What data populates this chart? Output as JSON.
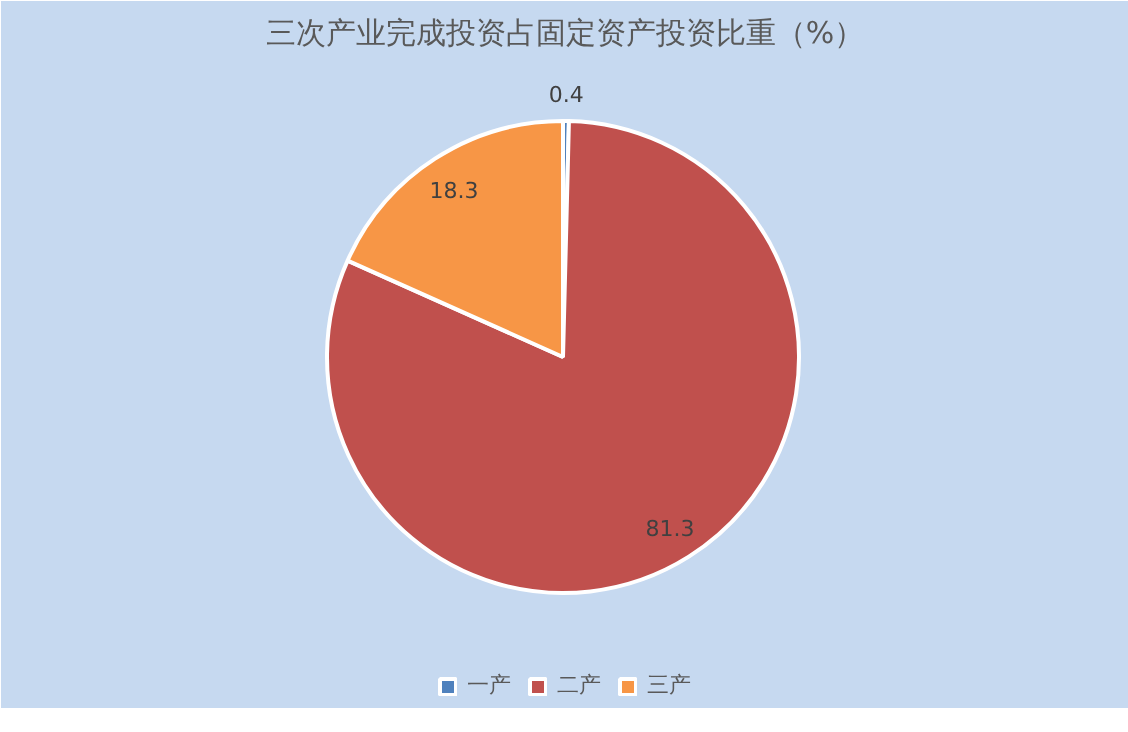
{
  "chart_data": {
    "type": "pie",
    "title": "三次产业完成投资占固定资产投资比重（%）",
    "categories": [
      "一产",
      "二产",
      "三产"
    ],
    "values": [
      0.4,
      81.3,
      18.3
    ],
    "colors": [
      "#4f81bd",
      "#c0504d",
      "#f79646"
    ],
    "data_labels": true,
    "legend": "bottom"
  }
}
